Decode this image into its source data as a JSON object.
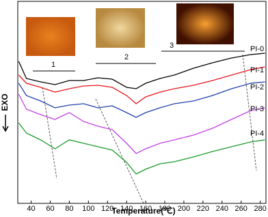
{
  "chart_data": {
    "type": "line",
    "x_label": "Temperature(℃)",
    "y_label": "EXO",
    "x": [
      27,
      35,
      50,
      65,
      80,
      95,
      110,
      125,
      140,
      150,
      160,
      175,
      190,
      210,
      230,
      250,
      270,
      285
    ],
    "xlim": [
      26,
      286
    ],
    "xticks": [
      40,
      60,
      80,
      100,
      120,
      140,
      160,
      180,
      200,
      220,
      240,
      260,
      280
    ],
    "ylim": [
      0,
      296
    ],
    "series": [
      {
        "name": "PI-0",
        "color": "#000000",
        "values": [
          208,
          183,
          178,
          174,
          180,
          180,
          184,
          182,
          170,
          168,
          176,
          183,
          188,
          198,
          206,
          213,
          218,
          220
        ]
      },
      {
        "name": "PI-1",
        "color": "#e8141b",
        "values": [
          188,
          176,
          170,
          163,
          168,
          172,
          173,
          170,
          158,
          146,
          156,
          163,
          168,
          173,
          180,
          188,
          196,
          200
        ]
      },
      {
        "name": "PI-2",
        "color": "#1f3fa8",
        "values": [
          176,
          158,
          150,
          140,
          144,
          146,
          140,
          143,
          133,
          126,
          133,
          140,
          146,
          150,
          158,
          168,
          176,
          178
        ]
      },
      {
        "name": "PI-3",
        "color": "#c040e0",
        "values": [
          160,
          138,
          130,
          123,
          133,
          120,
          113,
          108,
          88,
          73,
          80,
          88,
          93,
          100,
          110,
          123,
          136,
          140
        ]
      },
      {
        "name": "PI-4",
        "color": "#1a9a2a",
        "values": [
          118,
          103,
          93,
          80,
          93,
          88,
          83,
          78,
          60,
          43,
          50,
          58,
          61,
          68,
          76,
          83,
          90,
          93
        ]
      }
    ],
    "annotations": [
      "1",
      "2",
      "3"
    ]
  }
}
